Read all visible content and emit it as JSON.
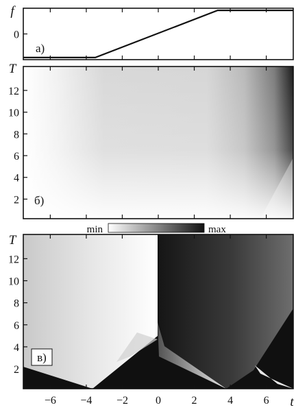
{
  "chart_data": [
    {
      "panel": "а)",
      "type": "line",
      "ylabel": "f",
      "yticks": [
        0
      ],
      "x": [
        -7.5,
        -3.5,
        3.3,
        7.5
      ],
      "y": [
        -1.1,
        -1.1,
        1.1,
        1.1
      ],
      "xlim": [
        -7.5,
        7.5
      ],
      "ylim": [
        -1.2,
        1.2
      ],
      "grid": false
    },
    {
      "panel": "б)",
      "type": "heatmap",
      "ylabel": "T",
      "yticks": [
        2,
        4,
        6,
        8,
        10,
        12
      ],
      "xlim": [
        -7.5,
        7.5
      ],
      "ylim": [
        0.2,
        14.2
      ],
      "colorbar": {
        "min_label": "min",
        "max_label": "max",
        "scale": "white-to-black"
      },
      "description_points": [
        {
          "t": 7.3,
          "T": 13.5,
          "level": "max"
        },
        {
          "t": -6.5,
          "T": 13,
          "level": "min"
        }
      ]
    },
    {
      "panel": "в)",
      "type": "heatmap",
      "ylabel": "T",
      "xlabel": "t",
      "xticks": [
        -6,
        -4,
        -2,
        0,
        2,
        4,
        6
      ],
      "yticks": [
        2,
        4,
        6,
        8,
        10,
        12
      ],
      "xlim": [
        -7.5,
        7.5
      ],
      "ylim": [
        0.2,
        14.2
      ],
      "grid": false
    }
  ]
}
